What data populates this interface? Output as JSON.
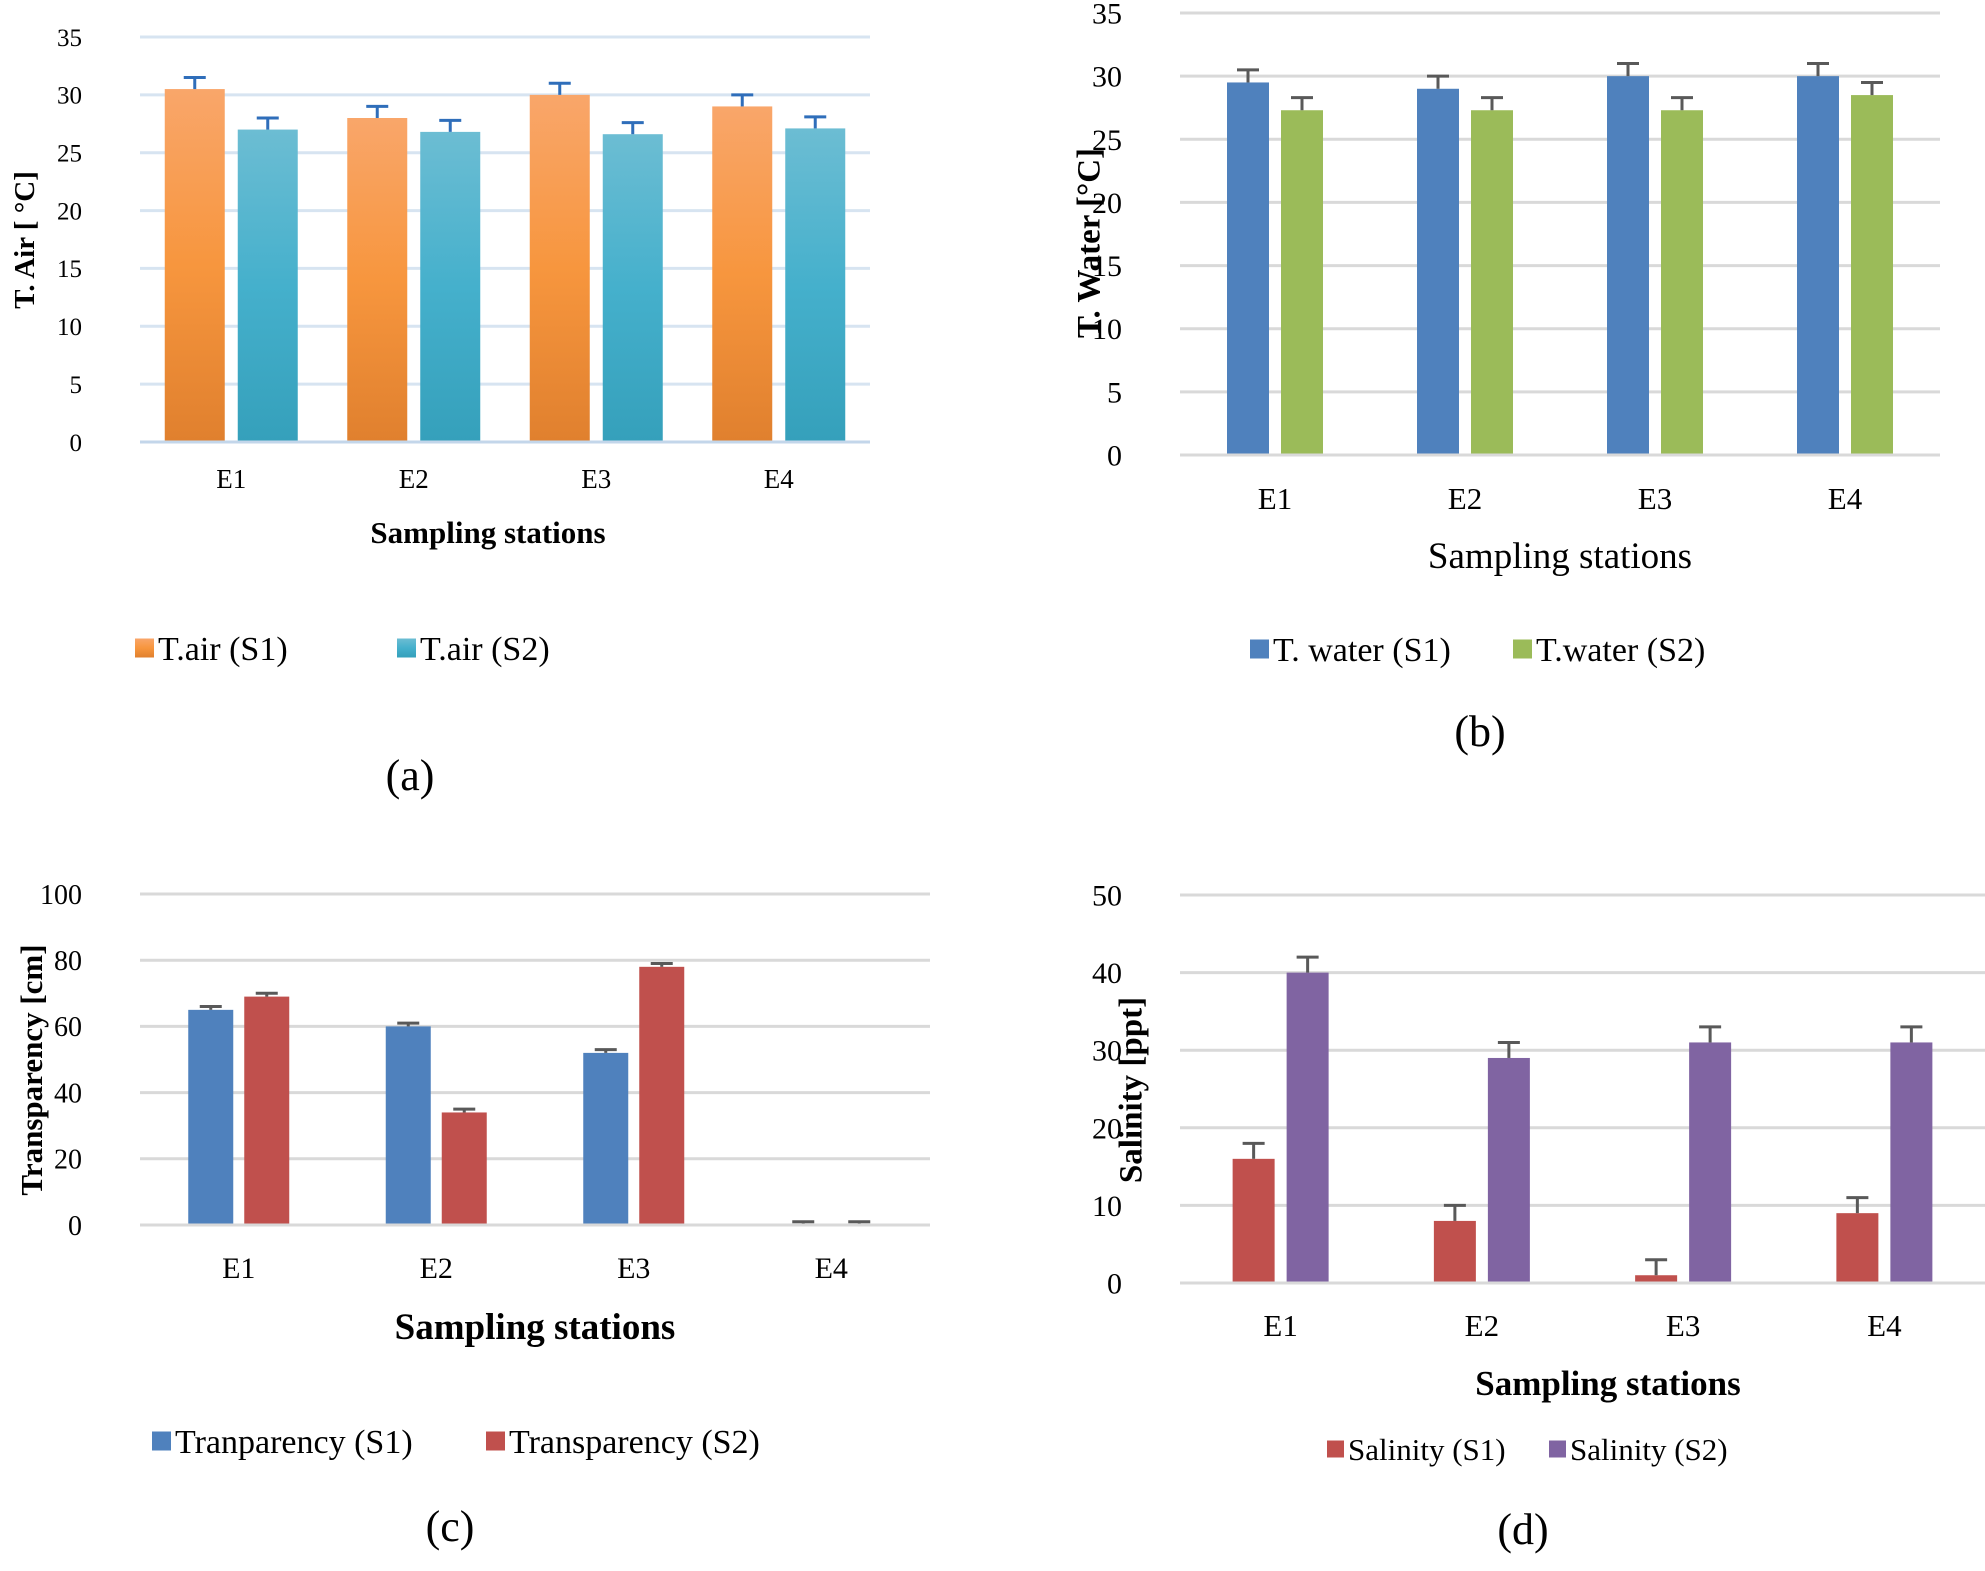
{
  "chart_data": [
    {
      "type": "bar",
      "panel_label": "(a)",
      "categories": [
        "E1",
        "E2",
        "E3",
        "E4"
      ],
      "xlabel": "Sampling stations",
      "ylabel": "T. Air [ °C]",
      "ylim": [
        0,
        35
      ],
      "yticks": [
        0,
        5,
        10,
        15,
        20,
        25,
        30,
        35
      ],
      "grid": true,
      "legend_position": "bottom",
      "series": [
        {
          "name": "T.air (S1)",
          "values": [
            30.5,
            28.0,
            30.0,
            29.0
          ],
          "errors": [
            1.0,
            1.0,
            1.0,
            1.0
          ],
          "color": "#F39A4A"
        },
        {
          "name": "T.air (S2)",
          "values": [
            27.0,
            26.8,
            26.6,
            27.1
          ],
          "errors": [
            1.0,
            1.0,
            1.0,
            1.0
          ],
          "color": "#4BAFCB"
        }
      ]
    },
    {
      "type": "bar",
      "panel_label": "(b)",
      "categories": [
        "E1",
        "E2",
        "E3",
        "E4"
      ],
      "xlabel": "Sampling stations",
      "ylabel": "T. Water [°C]",
      "ylim": [
        0,
        35
      ],
      "yticks": [
        0,
        5,
        10,
        15,
        20,
        25,
        30,
        35
      ],
      "grid": true,
      "legend_position": "bottom",
      "series": [
        {
          "name": "T. water (S1)",
          "values": [
            29.5,
            29.0,
            30.0,
            30.0
          ],
          "errors": [
            1.0,
            1.0,
            1.0,
            1.0
          ],
          "color": "#4F81BD"
        },
        {
          "name": "T.water (S2)",
          "values": [
            27.3,
            27.3,
            27.3,
            28.5
          ],
          "errors": [
            1.0,
            1.0,
            1.0,
            1.0
          ],
          "color": "#9BBB59"
        }
      ]
    },
    {
      "type": "bar",
      "panel_label": "(c)",
      "categories": [
        "E1",
        "E2",
        "E3",
        "E4"
      ],
      "xlabel": "Sampling stations",
      "ylabel": "Transparency [cm]",
      "ylim": [
        0,
        100
      ],
      "yticks": [
        0,
        20,
        40,
        60,
        80,
        100
      ],
      "grid": true,
      "legend_position": "bottom",
      "series": [
        {
          "name": "Tranparency (S1)",
          "values": [
            65,
            60,
            52,
            0
          ],
          "errors": [
            1,
            1,
            1,
            1
          ],
          "color": "#4F81BD"
        },
        {
          "name": "Transparency (S2)",
          "values": [
            69,
            34,
            78,
            0
          ],
          "errors": [
            1,
            1,
            1,
            1
          ],
          "color": "#C0504D"
        }
      ]
    },
    {
      "type": "bar",
      "panel_label": "(d)",
      "categories": [
        "E1",
        "E2",
        "E3",
        "E4"
      ],
      "xlabel": "Sampling stations",
      "ylabel": "Salinity [ppt]",
      "ylim": [
        0,
        50
      ],
      "yticks": [
        0,
        10,
        20,
        30,
        40,
        50
      ],
      "grid": true,
      "legend_position": "bottom",
      "series": [
        {
          "name": "Salinity (S1)",
          "values": [
            16,
            8,
            1,
            9
          ],
          "errors": [
            2,
            2,
            2,
            2
          ],
          "color": "#C0504D"
        },
        {
          "name": "Salinity (S2)",
          "values": [
            40,
            29,
            31,
            31
          ],
          "errors": [
            2,
            2,
            2,
            2
          ],
          "color": "#8064A2"
        }
      ]
    }
  ]
}
